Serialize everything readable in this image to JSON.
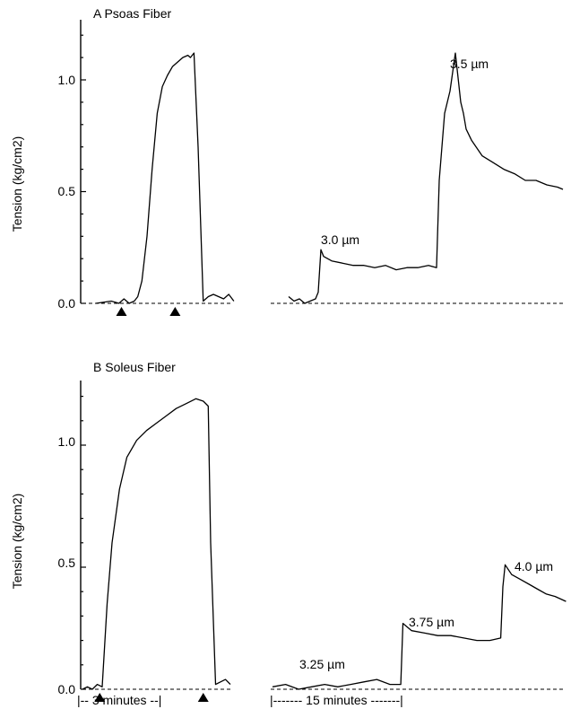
{
  "chart_data": [
    {
      "type": "line",
      "title": "A  Psoas Fiber",
      "ylabel": "Tension (kg/cm2)",
      "ylim": [
        0,
        1.25
      ],
      "yticks": [
        "0.0",
        "0.5",
        "1.0"
      ],
      "markers": [
        0.5,
        1.55
      ],
      "series": [
        {
          "name": "activation",
          "x": [
            0,
            0.3,
            0.45,
            0.55,
            0.65,
            0.75,
            0.82,
            0.9,
            1.0,
            1.1,
            1.2,
            1.3,
            1.4,
            1.5,
            1.6,
            1.7,
            1.8,
            1.85,
            1.92,
            2.0,
            2.1,
            2.2,
            2.3,
            2.4,
            2.5,
            2.6,
            2.7
          ],
          "y": [
            0.0,
            0.01,
            0.0,
            0.02,
            0.0,
            0.01,
            0.03,
            0.1,
            0.3,
            0.6,
            0.85,
            0.97,
            1.02,
            1.06,
            1.08,
            1.1,
            1.11,
            1.1,
            1.12,
            0.7,
            0.01,
            0.03,
            0.04,
            0.03,
            0.02,
            0.04,
            0.01
          ]
        },
        {
          "name": "stretch",
          "x": [
            0,
            0.1,
            0.2,
            0.3,
            0.4,
            0.5,
            0.55,
            0.6,
            0.65,
            0.8,
            1.0,
            1.2,
            1.4,
            1.6,
            1.8,
            2.0,
            2.2,
            2.4,
            2.6,
            2.75,
            2.8,
            2.9,
            3.0,
            3.1,
            3.2,
            3.25,
            3.3,
            3.4,
            3.6,
            3.8,
            4.0,
            4.2,
            4.4,
            4.6,
            4.8,
            5.0,
            5.1
          ],
          "y": [
            0.03,
            0.01,
            0.02,
            0.0,
            0.01,
            0.02,
            0.05,
            0.24,
            0.21,
            0.19,
            0.18,
            0.17,
            0.17,
            0.16,
            0.17,
            0.15,
            0.16,
            0.16,
            0.17,
            0.16,
            0.55,
            0.85,
            0.95,
            1.12,
            0.9,
            0.85,
            0.78,
            0.73,
            0.66,
            0.63,
            0.6,
            0.58,
            0.55,
            0.55,
            0.53,
            0.52,
            0.51
          ]
        }
      ],
      "annotations": [
        "3.0 µm",
        "3.5 µm"
      ]
    },
    {
      "type": "line",
      "title": "B  Soleus Fiber",
      "ylabel": "Tension (kg/cm2)",
      "ylim": [
        0,
        1.25
      ],
      "yticks": [
        "0.0",
        "0.5",
        "1.0"
      ],
      "markers": [
        0.35,
        2.45
      ],
      "series": [
        {
          "name": "activation",
          "x": [
            0,
            0.1,
            0.2,
            0.3,
            0.4,
            0.5,
            0.6,
            0.75,
            0.9,
            1.1,
            1.3,
            1.5,
            1.7,
            1.9,
            2.1,
            2.3,
            2.45,
            2.55,
            2.6,
            2.7,
            2.8,
            2.9,
            3.0
          ],
          "y": [
            0.0,
            0.01,
            0.0,
            0.02,
            0.01,
            0.35,
            0.6,
            0.82,
            0.95,
            1.02,
            1.06,
            1.09,
            1.12,
            1.15,
            1.17,
            1.19,
            1.18,
            1.16,
            0.6,
            0.02,
            0.03,
            0.04,
            0.02
          ]
        },
        {
          "name": "stretch",
          "x": [
            0,
            0.3,
            0.6,
            0.9,
            1.2,
            1.5,
            1.8,
            2.1,
            2.4,
            2.7,
            2.95,
            3.0,
            3.2,
            3.5,
            3.8,
            4.1,
            4.4,
            4.7,
            5.0,
            5.25,
            5.3,
            5.35,
            5.5,
            5.7,
            5.9,
            6.1,
            6.3,
            6.5,
            6.75
          ],
          "y": [
            0.01,
            0.02,
            0.0,
            0.01,
            0.02,
            0.01,
            0.02,
            0.03,
            0.04,
            0.02,
            0.02,
            0.27,
            0.24,
            0.23,
            0.22,
            0.22,
            0.21,
            0.2,
            0.2,
            0.21,
            0.42,
            0.51,
            0.47,
            0.45,
            0.43,
            0.41,
            0.39,
            0.38,
            0.36
          ]
        }
      ],
      "annotations": [
        "3.25 µm",
        "3.75 µm",
        "4.0 µm"
      ]
    }
  ],
  "timescales": {
    "left": "|-- 3 minutes --|",
    "right": "|------- 15 minutes -------|"
  }
}
